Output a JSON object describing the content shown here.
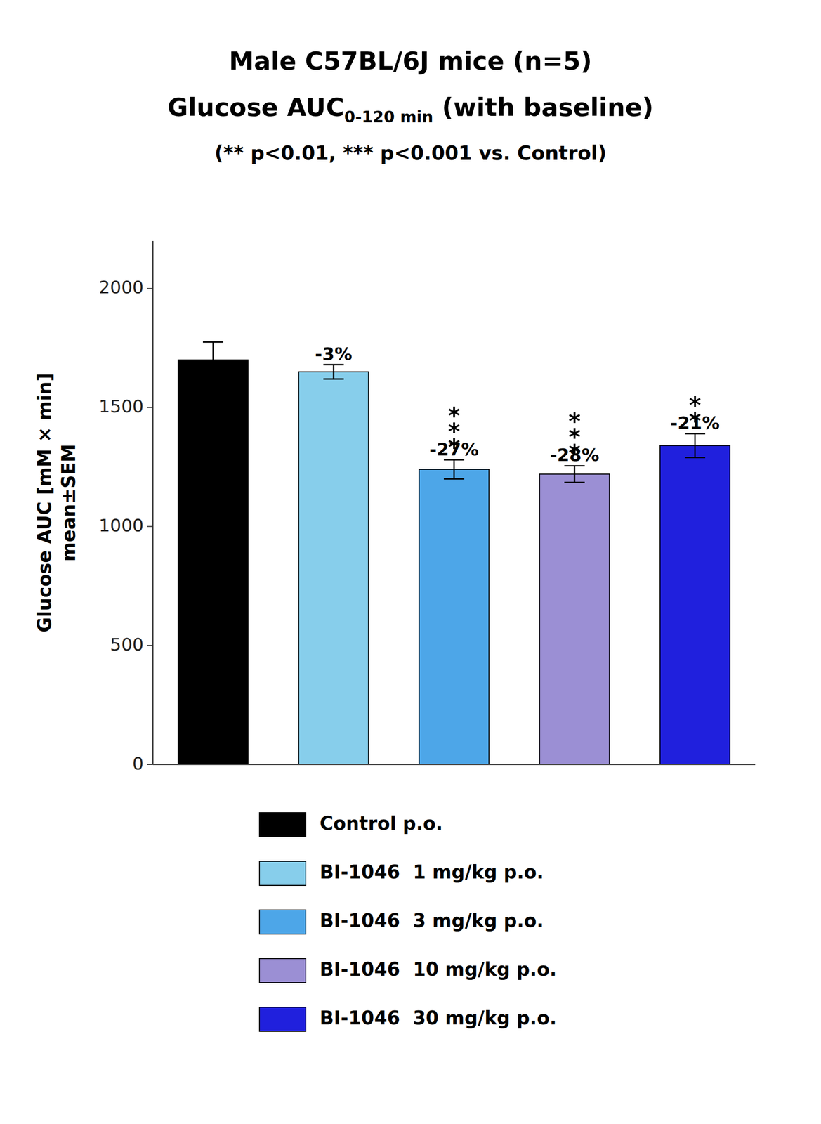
{
  "chart_data": {
    "type": "bar",
    "title": [
      "Male C57BL/6J mice (n=5)",
      [
        "Glucose AUC",
        "0-120 min",
        " (with baseline)"
      ]
    ],
    "subtitle": "(** p<0.01, *** p<0.001 vs. Control)",
    "ylabel": [
      "Glucose AUC [mM × min]",
      "mean±SEM"
    ],
    "categories": [
      "Control p.o.",
      "BI-1046  1 mg/kg p.o.",
      "BI-1046  3 mg/kg p.o.",
      "BI-1046  10 mg/kg p.o.",
      "BI-1046  30 mg/kg p.o."
    ],
    "values": [
      1700,
      1650,
      1240,
      1220,
      1340
    ],
    "errors": [
      75,
      30,
      40,
      35,
      50
    ],
    "colors": [
      "#000000",
      "#87CEEB",
      "#4DA6E8",
      "#9B8FD4",
      "#2020DD"
    ],
    "annotations": [
      {
        "index": 1,
        "text": "-3%"
      },
      {
        "index": 2,
        "text": "-27%",
        "significance": "***"
      },
      {
        "index": 3,
        "text": "-28%",
        "significance": "***"
      },
      {
        "index": 4,
        "text": "-21%",
        "significance": "**"
      }
    ],
    "ylim": [
      0,
      2200
    ],
    "yticks": [
      0,
      500,
      1000,
      1500,
      2000
    ],
    "grid": false,
    "legend": "bottom",
    "tick_labels": "y"
  }
}
